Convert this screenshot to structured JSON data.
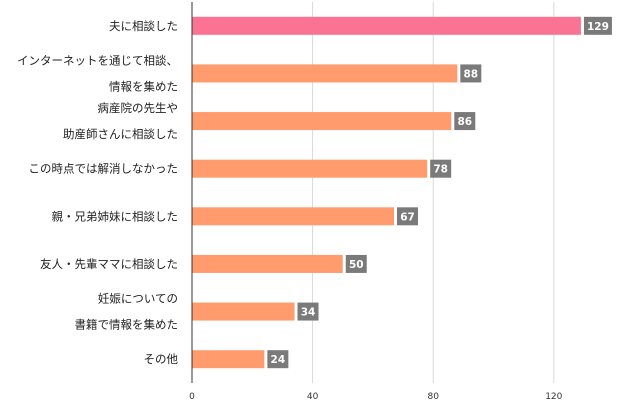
{
  "chart_data": {
    "type": "bar",
    "orientation": "horizontal",
    "categories": [
      [
        "夫に相談した"
      ],
      [
        "インターネットを通じて相談、",
        "情報を集めた"
      ],
      [
        "病産院の先生や",
        "助産師さんに相談した"
      ],
      [
        "この時点では解消しなかった"
      ],
      [
        "親・兄弟姉妹に相談した"
      ],
      [
        "友人・先輩ママに相談した"
      ],
      [
        "妊娠についての",
        "書籍で情報を集めた"
      ],
      [
        "その他"
      ]
    ],
    "values": [
      129,
      88,
      86,
      78,
      67,
      50,
      34,
      24
    ],
    "xlim": [
      0,
      140
    ],
    "xticks": [
      0,
      40,
      80,
      120
    ],
    "tick_labels": [
      "0",
      "40",
      "80",
      "120"
    ],
    "grid": true,
    "colors": {
      "highlight": "#fb7393",
      "bar": "#ff9b6c",
      "label_bg": "#7a7a7a",
      "grid": "#d9d9d9",
      "axis": "#333333"
    },
    "highlight_index": 0,
    "title": "",
    "xlabel": "",
    "ylabel": ""
  }
}
